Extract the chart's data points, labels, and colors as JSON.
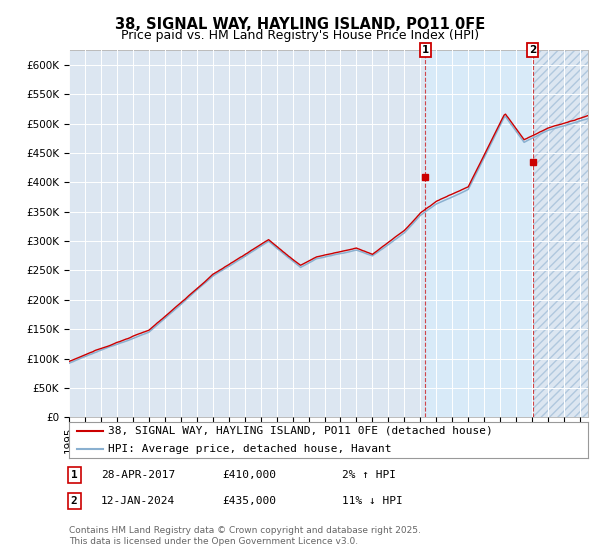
{
  "title": "38, SIGNAL WAY, HAYLING ISLAND, PO11 0FE",
  "subtitle": "Price paid vs. HM Land Registry's House Price Index (HPI)",
  "ylim": [
    0,
    625000
  ],
  "yticks": [
    0,
    50000,
    100000,
    150000,
    200000,
    250000,
    300000,
    350000,
    400000,
    450000,
    500000,
    550000,
    600000
  ],
  "xlim_start": 1995.0,
  "xlim_end": 2027.5,
  "bg_color": "#dce6f1",
  "grid_color": "#ffffff",
  "hpi_color": "#8ab0d0",
  "price_color": "#cc0000",
  "highlight_color": "#ccdff0",
  "hatch_color": "#c8d8e8",
  "marker1_x": 2017.32,
  "marker1_y": 410000,
  "marker2_x": 2024.04,
  "marker2_y": 435000,
  "legend_label1": "38, SIGNAL WAY, HAYLING ISLAND, PO11 0FE (detached house)",
  "legend_label2": "HPI: Average price, detached house, Havant",
  "annot1_num": "1",
  "annot1_date": "28-APR-2017",
  "annot1_price": "£410,000",
  "annot1_hpi": "2% ↑ HPI",
  "annot2_num": "2",
  "annot2_date": "12-JAN-2024",
  "annot2_price": "£435,000",
  "annot2_hpi": "11% ↓ HPI",
  "footer": "Contains HM Land Registry data © Crown copyright and database right 2025.\nThis data is licensed under the Open Government Licence v3.0.",
  "title_fontsize": 10.5,
  "subtitle_fontsize": 9,
  "tick_fontsize": 7.5,
  "legend_fontsize": 8,
  "annot_fontsize": 8,
  "footer_fontsize": 6.5
}
